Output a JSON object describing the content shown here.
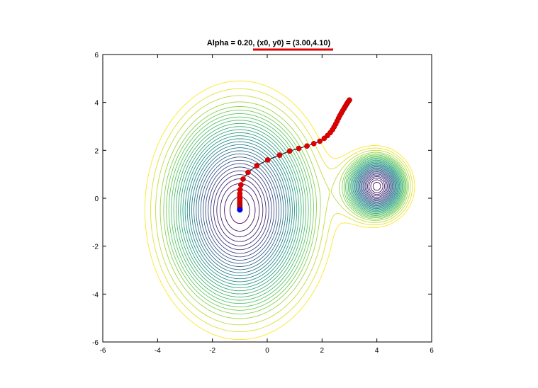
{
  "chart_data": {
    "type": "contour",
    "title": "Alpha = 0.20, (x0, y0) = (3.00,4.10)",
    "xlabel": "",
    "ylabel": "",
    "xlim": [
      -6,
      6
    ],
    "ylim": [
      -6,
      6
    ],
    "xticks": [
      -6,
      -4,
      -2,
      0,
      2,
      4,
      6
    ],
    "yticks": [
      -6,
      -4,
      -2,
      0,
      2,
      4,
      6
    ],
    "grid": false,
    "colormap": [
      "#440154",
      "#3b528b",
      "#21918c",
      "#5ec962",
      "#fde725"
    ],
    "title_underline_color": "#e00000",
    "path_color": "#e00000",
    "path_line_color": "#000000",
    "end_point_color": "#0000ff",
    "minima": [
      {
        "x": -1.0,
        "y": -0.5
      },
      {
        "x": 4.0,
        "y": 0.5
      }
    ],
    "path": [
      {
        "x": 3.0,
        "y": 4.1
      },
      {
        "x": 2.96,
        "y": 4.04
      },
      {
        "x": 2.92,
        "y": 3.97
      },
      {
        "x": 2.88,
        "y": 3.9
      },
      {
        "x": 2.84,
        "y": 3.82
      },
      {
        "x": 2.8,
        "y": 3.74
      },
      {
        "x": 2.75,
        "y": 3.65
      },
      {
        "x": 2.7,
        "y": 3.55
      },
      {
        "x": 2.65,
        "y": 3.45
      },
      {
        "x": 2.6,
        "y": 3.34
      },
      {
        "x": 2.55,
        "y": 3.22
      },
      {
        "x": 2.5,
        "y": 3.1
      },
      {
        "x": 2.44,
        "y": 2.98
      },
      {
        "x": 2.38,
        "y": 2.86
      },
      {
        "x": 2.3,
        "y": 2.74
      },
      {
        "x": 2.2,
        "y": 2.62
      },
      {
        "x": 2.08,
        "y": 2.5
      },
      {
        "x": 1.92,
        "y": 2.38
      },
      {
        "x": 1.7,
        "y": 2.28
      },
      {
        "x": 1.45,
        "y": 2.18
      },
      {
        "x": 1.15,
        "y": 2.08
      },
      {
        "x": 0.82,
        "y": 1.97
      },
      {
        "x": 0.45,
        "y": 1.8
      },
      {
        "x": 0.02,
        "y": 1.6
      },
      {
        "x": -0.38,
        "y": 1.36
      },
      {
        "x": -0.7,
        "y": 1.08
      },
      {
        "x": -0.88,
        "y": 0.8
      },
      {
        "x": -0.96,
        "y": 0.56
      },
      {
        "x": -0.99,
        "y": 0.36
      },
      {
        "x": -1.0,
        "y": 0.2
      },
      {
        "x": -1.0,
        "y": 0.08
      },
      {
        "x": -1.0,
        "y": -0.02
      },
      {
        "x": -1.0,
        "y": -0.1
      },
      {
        "x": -1.0,
        "y": -0.17
      },
      {
        "x": -1.0,
        "y": -0.23
      },
      {
        "x": -1.0,
        "y": -0.28
      },
      {
        "x": -1.0,
        "y": -0.32
      },
      {
        "x": -1.0,
        "y": -0.36
      },
      {
        "x": -1.0,
        "y": -0.4
      },
      {
        "x": -1.0,
        "y": -0.43
      },
      {
        "x": -1.0,
        "y": -0.46
      }
    ],
    "end_point": {
      "x": -1.0,
      "y": -0.48
    }
  }
}
